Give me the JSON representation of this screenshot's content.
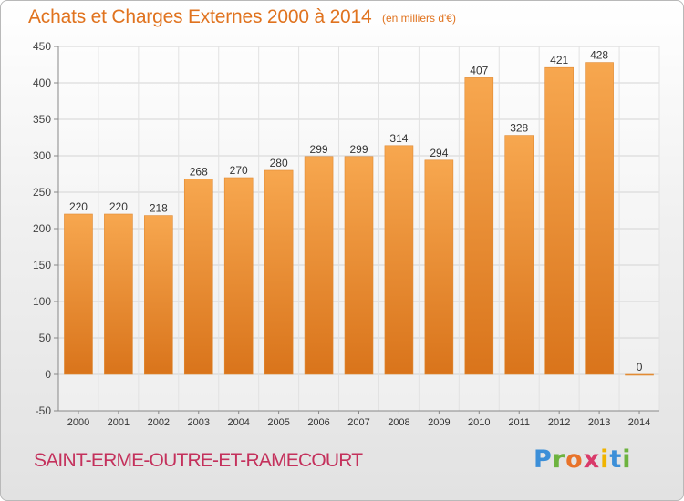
{
  "title": "Achats et Charges Externes 2000 à 2014",
  "unit": "(en milliers d'€)",
  "commune": "SAINT-ERME-OUTRE-ET-RAMECOURT",
  "brand": {
    "logo_text": "Proxiti",
    "letter_colors": [
      "#3c8fd8",
      "#6db33f",
      "#e8732a",
      "#d93a6a",
      "#f0b400",
      "#3c8fd8",
      "#6db33f"
    ]
  },
  "colors": {
    "bar_top": "#f7a74f",
    "bar_bottom": "#d9741b",
    "title": "#e0731f",
    "commune": "#c4315c"
  },
  "chart_data": {
    "type": "bar",
    "title": "Achats et Charges Externes 2000 à 2014",
    "categories": [
      "2000",
      "2001",
      "2002",
      "2003",
      "2004",
      "2005",
      "2006",
      "2007",
      "2008",
      "2009",
      "2010",
      "2011",
      "2012",
      "2013",
      "2014"
    ],
    "values": [
      220,
      220,
      218,
      268,
      270,
      280,
      299,
      299,
      314,
      294,
      407,
      328,
      421,
      428,
      0
    ],
    "ylim": [
      -50,
      450
    ],
    "yticks": [
      -50,
      0,
      50,
      100,
      150,
      200,
      250,
      300,
      350,
      400,
      450
    ],
    "grid": true,
    "legend": "none"
  }
}
